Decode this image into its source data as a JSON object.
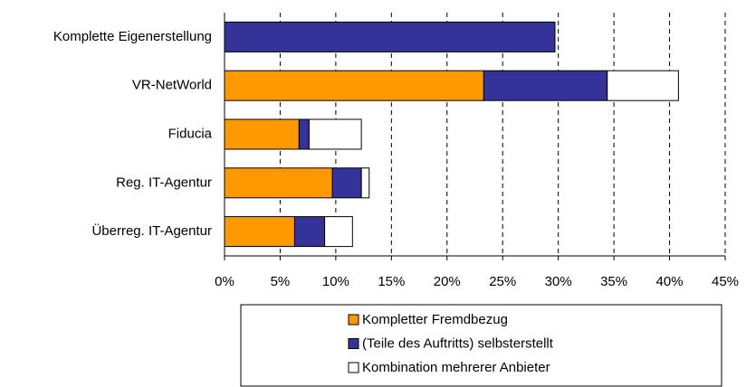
{
  "chart_data": {
    "type": "bar",
    "orientation": "horizontal",
    "stacked": true,
    "categories": [
      "Komplette Eigenerstellung",
      "VR-NetWorld",
      "Fiducia",
      "Reg. IT-Agentur",
      "Überreg. IT-Agentur"
    ],
    "series": [
      {
        "name": "Kompletter Fremdbezug",
        "color": "#ff9900",
        "values": [
          0,
          23.3,
          6.7,
          9.7,
          6.3
        ]
      },
      {
        "name": "(Teile des Auftritts) selbsterstellt",
        "color": "#333399",
        "values": [
          29.7,
          11.1,
          0.9,
          2.6,
          2.7
        ]
      },
      {
        "name": "Kombination mehrerer Anbieter",
        "color": "#ffffff",
        "values": [
          0,
          6.4,
          4.7,
          0.7,
          2.5
        ]
      }
    ],
    "xlim": [
      0,
      45
    ],
    "xticks": [
      {
        "value": 0,
        "label": "0%"
      },
      {
        "value": 5,
        "label": "5%"
      },
      {
        "value": 10,
        "label": "10%"
      },
      {
        "value": 15,
        "label": "15%"
      },
      {
        "value": 20,
        "label": "20%"
      },
      {
        "value": 25,
        "label": "25%"
      },
      {
        "value": 30,
        "label": "30%"
      },
      {
        "value": 35,
        "label": "35%"
      },
      {
        "value": 40,
        "label": "40%"
      },
      {
        "value": 45,
        "label": "45%"
      }
    ],
    "grid": true,
    "legend": "bottom"
  }
}
